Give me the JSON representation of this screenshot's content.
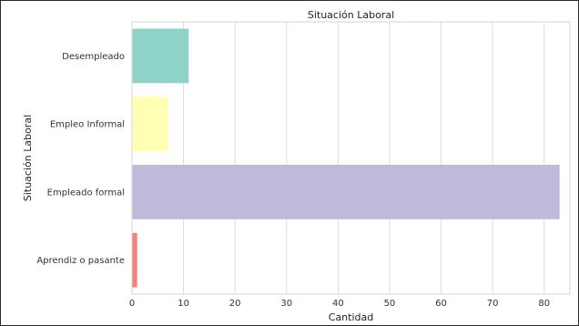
{
  "chart_data": {
    "type": "bar",
    "orientation": "horizontal",
    "title": "Situación Laboral",
    "xlabel": "Cantidad",
    "ylabel": "Situación Laboral",
    "categories": [
      "Desempleado",
      "Empleo Informal",
      "Empleado formal",
      "Aprendiz o pasante"
    ],
    "values": [
      11,
      7,
      83,
      1
    ],
    "colors": [
      "#8dd3c7",
      "#ffffb3",
      "#bebada",
      "#fb8072"
    ],
    "xlim": [
      0,
      85
    ],
    "xticks": [
      "0",
      "10",
      "20",
      "30",
      "40",
      "50",
      "60",
      "70",
      "80"
    ],
    "grid": true,
    "legend": "none"
  }
}
